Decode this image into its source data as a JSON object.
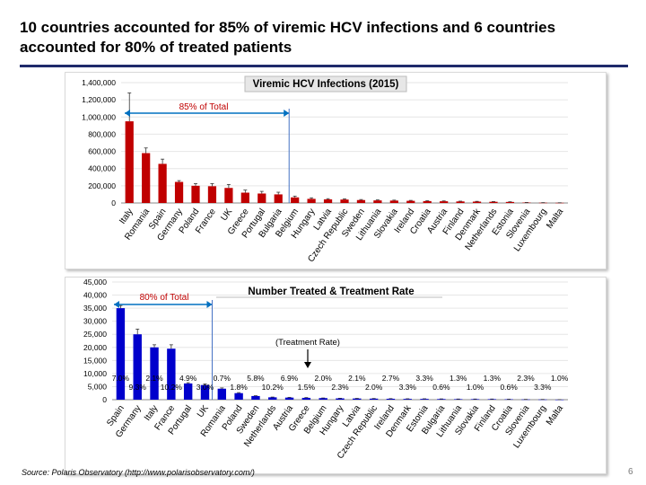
{
  "slide": {
    "title": "10 countries accounted for 85% of viremic HCV infections and 6 countries accounted for 80% of treated patients",
    "source": "Source: Polaris Observatory (http://www.polarisobservatory.com/)",
    "page_number": "6"
  },
  "chart_data": [
    {
      "type": "bar",
      "title": "Viremic HCV Infections (2015)",
      "annotation": "85% of Total",
      "bar_color": "#c00000",
      "y_ticks": [
        "0",
        "200,000",
        "400,000",
        "600,000",
        "800,000",
        "1,000,000",
        "1,200,000",
        "1,400,000"
      ],
      "ylim": [
        0,
        1400000
      ],
      "categories": [
        "Italy",
        "Romania",
        "Spain",
        "Germany",
        "Poland",
        "France",
        "UK",
        "Greece",
        "Portugal",
        "Bulgaria",
        "Belgium",
        "Hungary",
        "Latvia",
        "Czech Republic",
        "Sweden",
        "Lithuania",
        "Slovakia",
        "Ireland",
        "Croatia",
        "Austria",
        "Finland",
        "Denmark",
        "Netherlands",
        "Estonia",
        "Slovenia",
        "Luxembourg",
        "Malta"
      ],
      "values": [
        950000,
        580000,
        455000,
        245000,
        200000,
        195000,
        175000,
        120000,
        110000,
        100000,
        65000,
        48000,
        42000,
        40000,
        34000,
        30000,
        28000,
        25000,
        22000,
        20000,
        18000,
        16000,
        14000,
        12000,
        5000,
        3000,
        2000
      ],
      "error_high": [
        1280000,
        640000,
        510000,
        260000,
        225000,
        225000,
        215000,
        150000,
        135000,
        125000,
        80000,
        60000,
        50000,
        48000,
        40000,
        36000,
        33000,
        30000,
        26000,
        24000,
        21000,
        19000,
        17000,
        14000,
        6000,
        4000,
        2500
      ]
    },
    {
      "type": "bar",
      "title": "Number Treated & Treatment Rate",
      "annotation": "80% of Total",
      "rate_label": "(Treatment Rate)",
      "bar_color": "#0000cc",
      "y_ticks": [
        "0",
        "5,000",
        "10,000",
        "15,000",
        "20,000",
        "25,000",
        "30,000",
        "35,000",
        "40,000",
        "45,000"
      ],
      "ylim": [
        0,
        45000
      ],
      "categories": [
        "Spain",
        "Germany",
        "Italy",
        "France",
        "Portugal",
        "UK",
        "Romania",
        "Poland",
        "Sweden",
        "Netherlands",
        "Austria",
        "Greece",
        "Belgium",
        "Hungary",
        "Latvia",
        "Czech Republic",
        "Ireland",
        "Denmark",
        "Estonia",
        "Bulgaria",
        "Lithuania",
        "Slovakia",
        "Finland",
        "Croatia",
        "Slovenia",
        "Luxembourg",
        "Malta"
      ],
      "values": [
        35000,
        25000,
        20000,
        19500,
        6200,
        5600,
        4200,
        2500,
        1400,
        900,
        800,
        700,
        600,
        500,
        450,
        400,
        350,
        300,
        300,
        250,
        200,
        200,
        200,
        150,
        100,
        80,
        20
      ],
      "error_high": [
        36000,
        27000,
        21000,
        21000,
        6500,
        6000,
        4500,
        2700,
        1500,
        1000,
        900,
        800,
        650,
        550,
        500,
        450,
        400,
        350,
        350,
        300,
        250,
        250,
        250,
        200,
        120,
        100,
        30
      ],
      "rates": [
        "7.0%",
        "9.3%",
        "2.1%",
        "10.2%",
        "4.9%",
        "3.0%",
        "0.7%",
        "1.8%",
        "5.8%",
        "10.2%",
        "6.9%",
        "1.5%",
        "2.0%",
        "2.3%",
        "2.1%",
        "2.0%",
        "2.7%",
        "3.3%",
        "3.3%",
        "0.6%",
        "1.3%",
        "1.0%",
        "1.3%",
        "0.6%",
        "2.3%",
        "3.3%",
        "1.0%"
      ]
    }
  ]
}
